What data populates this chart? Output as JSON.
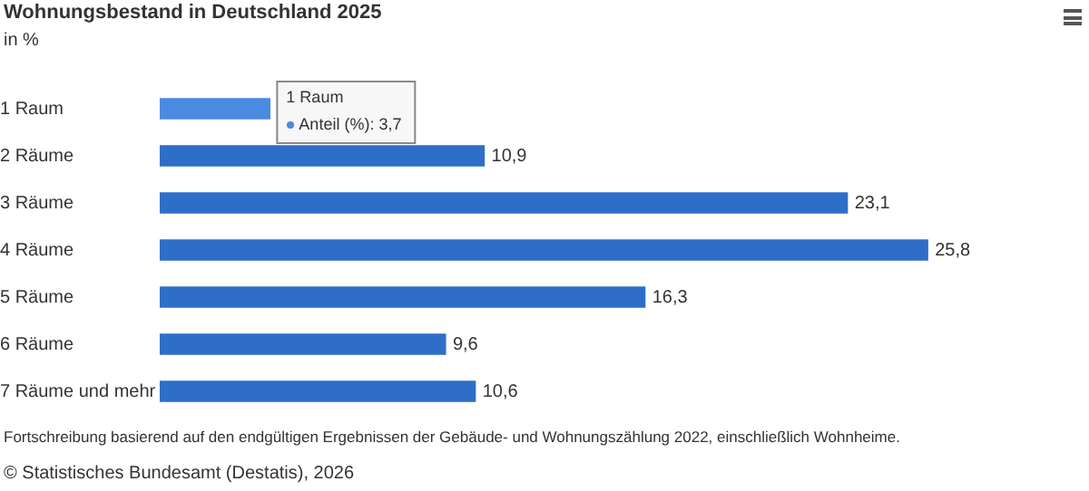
{
  "chart_data": {
    "type": "bar",
    "orientation": "horizontal",
    "title": "Wohnungsbestand in Deutschland 2025",
    "subtitle": "in %",
    "categories": [
      "1 Raum",
      "2 Räume",
      "3 Räume",
      "4 Räume",
      "5 Räume",
      "6 Räume",
      "7 Räume und mehr"
    ],
    "values": [
      3.7,
      10.9,
      23.1,
      25.8,
      16.3,
      9.6,
      10.6
    ],
    "colors": [
      "#4a8ae0",
      "#2f6ec8",
      "#2f6ec8",
      "#2f6ec8",
      "#2f6ec8",
      "#2f6ec8",
      "#2f6ec8"
    ],
    "value_labels": [
      null,
      "10,9",
      "23,1",
      "25,8",
      "16,3",
      "9,6",
      "10,6"
    ],
    "tick_labels": "y",
    "annotations": [
      {
        "text": "Anteil (%): 3,7",
        "x": 3.7,
        "y": "1 Raum"
      },
      "Fortschreibung basierend auf den endgültigen Ergebnissen der Gebäude- und Wohnungszählung 2022, einschließlich Wohnheime.",
      "© Statistisches Bundesamt (Destatis), 2026"
    ]
  }
}
